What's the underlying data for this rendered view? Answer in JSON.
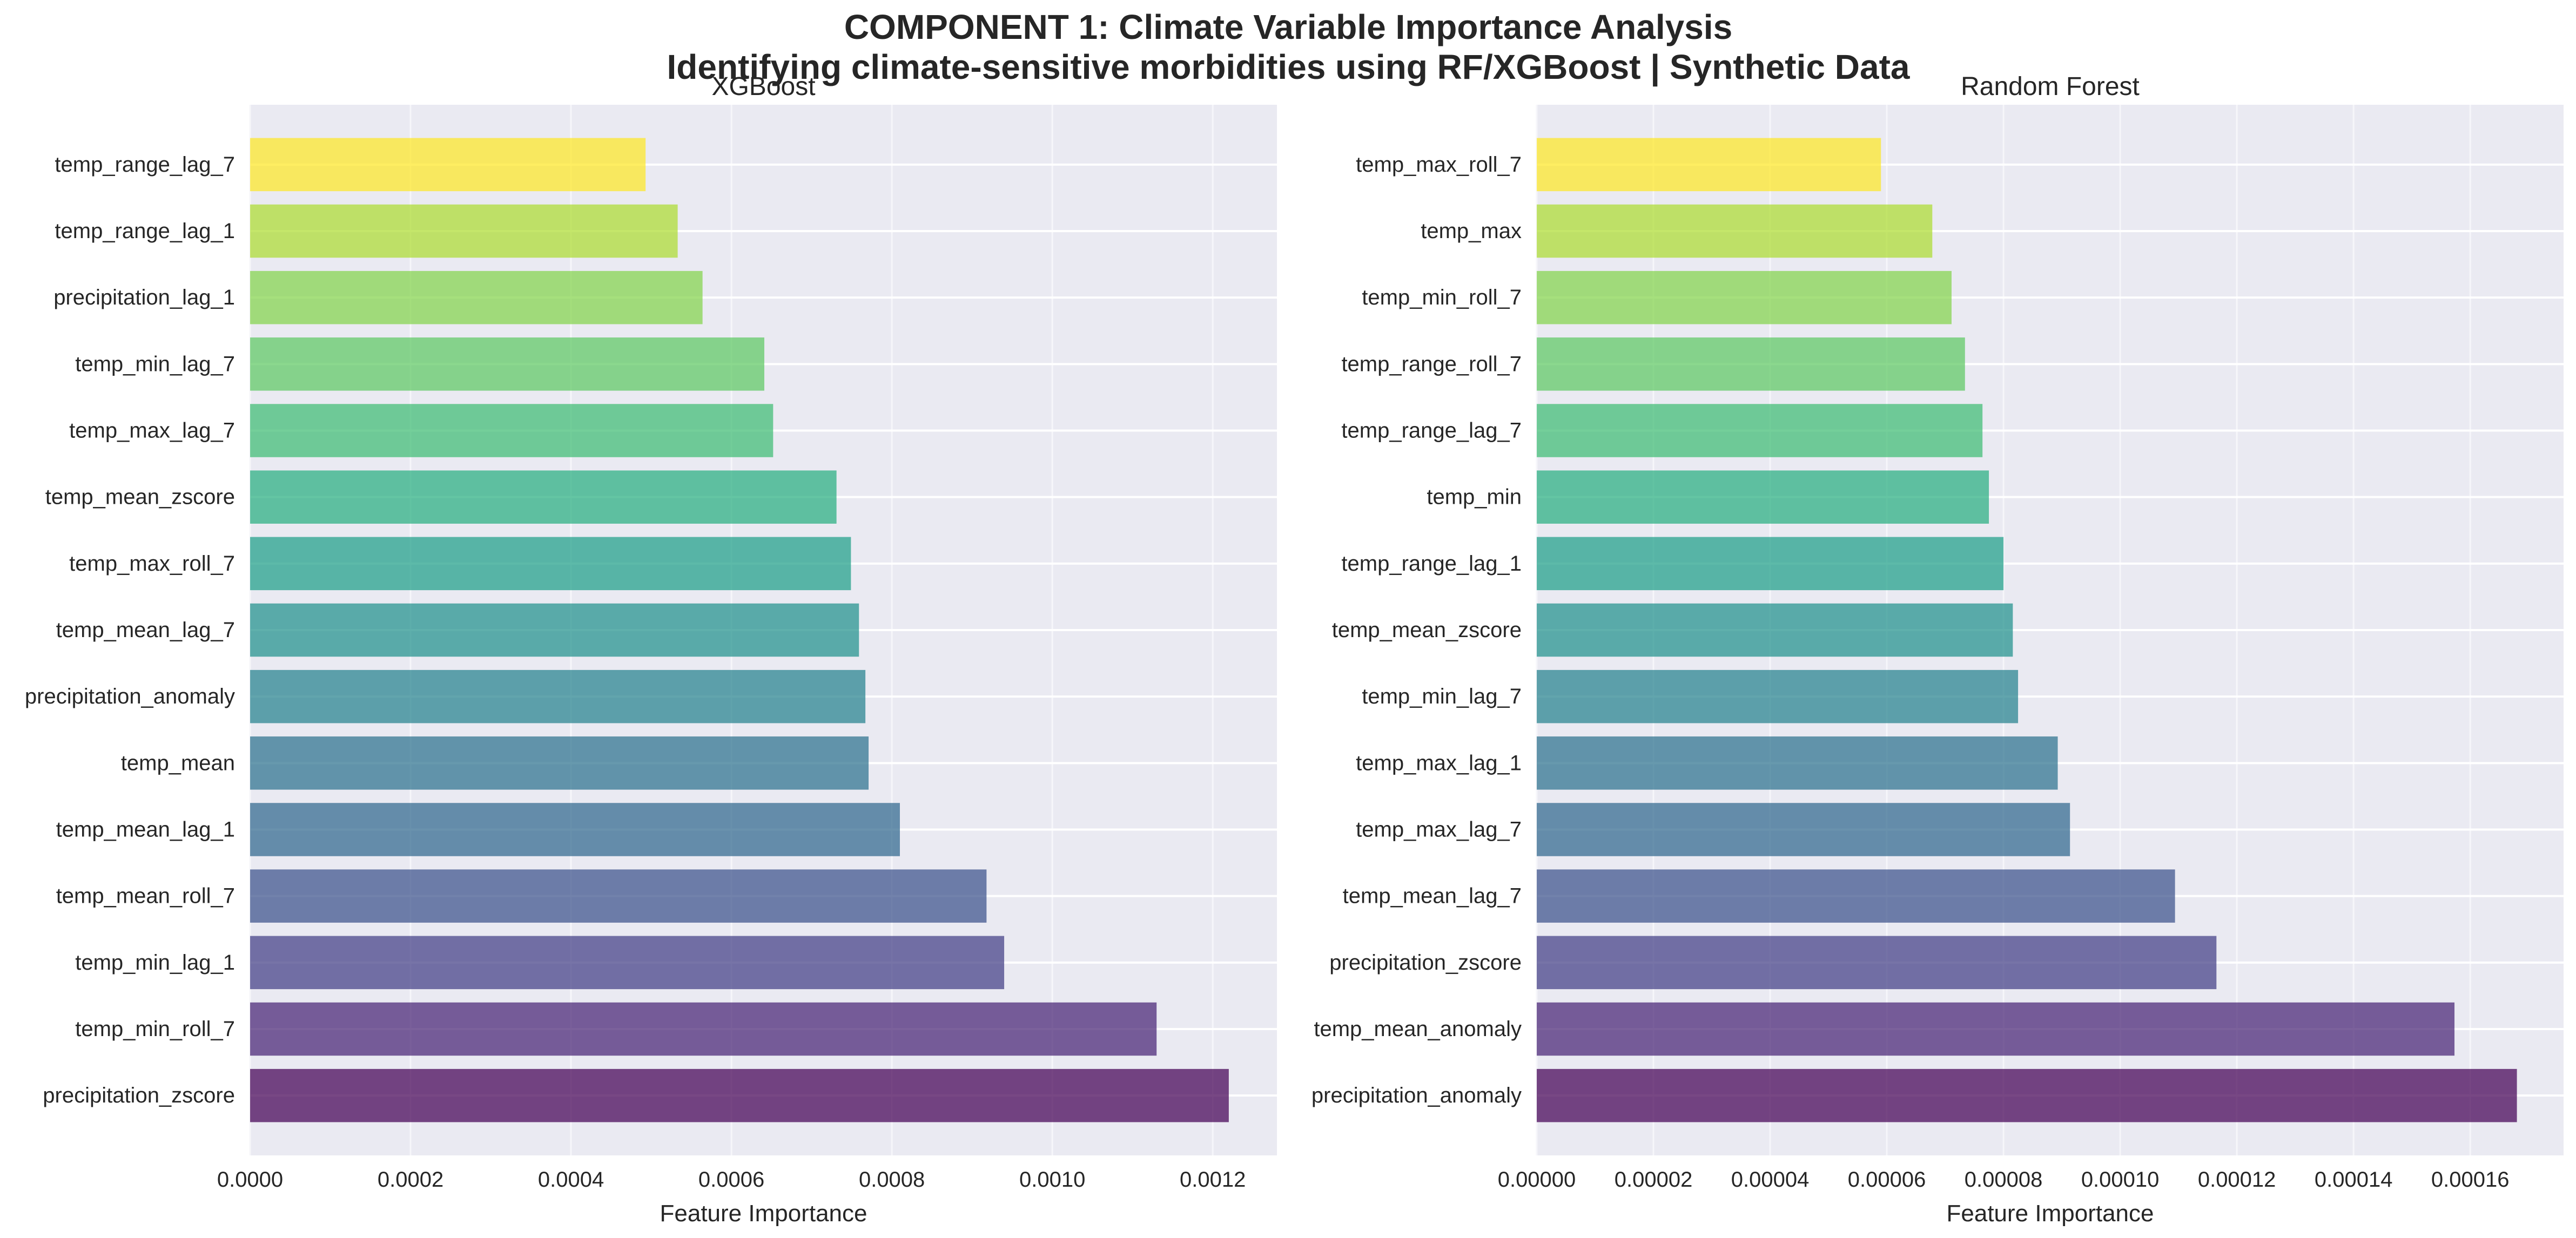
{
  "figure": {
    "title": "COMPONENT 1: Climate Variable Importance Analysis",
    "subtitle": "Identifying climate-sensitive morbidities using RF/XGBoost | Synthetic Data"
  },
  "chart_data": [
    {
      "type": "bar",
      "orientation": "horizontal",
      "title": "XGBoost",
      "xlabel": "Feature Importance",
      "ylabel": "",
      "xlim": [
        0,
        0.00128
      ],
      "xticks": [
        "0.0000",
        "0.0002",
        "0.0004",
        "0.0006",
        "0.0008",
        "0.0010",
        "0.0012"
      ],
      "xtick_values": [
        0,
        0.0002,
        0.0004,
        0.0006,
        0.0008,
        0.001,
        0.0012
      ],
      "grid": true,
      "categories": [
        "precipitation_zscore",
        "temp_min_roll_7",
        "temp_min_lag_1",
        "temp_mean_roll_7",
        "temp_mean_lag_1",
        "temp_mean",
        "precipitation_anomaly",
        "temp_mean_lag_7",
        "temp_max_roll_7",
        "temp_mean_zscore",
        "temp_max_lag_7",
        "temp_min_lag_7",
        "precipitation_lag_1",
        "temp_range_lag_1",
        "temp_range_lag_7"
      ],
      "values": [
        0.00122,
        0.00113,
        0.00094,
        0.000918,
        0.00081,
        0.000771,
        0.000767,
        0.000759,
        0.000749,
        0.000731,
        0.000652,
        0.000641,
        0.000564,
        0.000533,
        0.000493
      ],
      "colors": [
        "#440154",
        "#482475",
        "#433e85",
        "#3b528b",
        "#31688e",
        "#2c728e",
        "#26828e",
        "#21918c",
        "#1fa088",
        "#28ae80",
        "#3fbc73",
        "#5ec962",
        "#84d44b",
        "#addc30",
        "#fde725"
      ]
    },
    {
      "type": "bar",
      "orientation": "horizontal",
      "title": "Random Forest",
      "xlabel": "Feature Importance",
      "ylabel": "",
      "xlim": [
        0,
        0.000176
      ],
      "xticks": [
        "0.00000",
        "0.00002",
        "0.00004",
        "0.00006",
        "0.00008",
        "0.00010",
        "0.00012",
        "0.00014",
        "0.00016"
      ],
      "xtick_values": [
        0,
        2e-05,
        4e-05,
        6e-05,
        8e-05,
        0.0001,
        0.00012,
        0.00014,
        0.00016
      ],
      "grid": true,
      "categories": [
        "precipitation_anomaly",
        "temp_mean_anomaly",
        "precipitation_zscore",
        "temp_mean_lag_7",
        "temp_max_lag_7",
        "temp_max_lag_1",
        "temp_min_lag_7",
        "temp_mean_zscore",
        "temp_range_lag_1",
        "temp_min",
        "temp_range_lag_7",
        "temp_range_roll_7",
        "temp_min_roll_7",
        "temp_max",
        "temp_max_roll_7"
      ],
      "values": [
        0.000168,
        0.0001573,
        0.0001165,
        0.0001094,
        9.14e-05,
        8.93e-05,
        8.25e-05,
        8.16e-05,
        8e-05,
        7.75e-05,
        7.64e-05,
        7.34e-05,
        7.11e-05,
        6.78e-05,
        5.9e-05
      ],
      "colors": [
        "#440154",
        "#482475",
        "#433e85",
        "#3b528b",
        "#31688e",
        "#2c728e",
        "#26828e",
        "#21918c",
        "#1fa088",
        "#28ae80",
        "#3fbc73",
        "#5ec962",
        "#84d44b",
        "#addc30",
        "#fde725"
      ]
    }
  ]
}
